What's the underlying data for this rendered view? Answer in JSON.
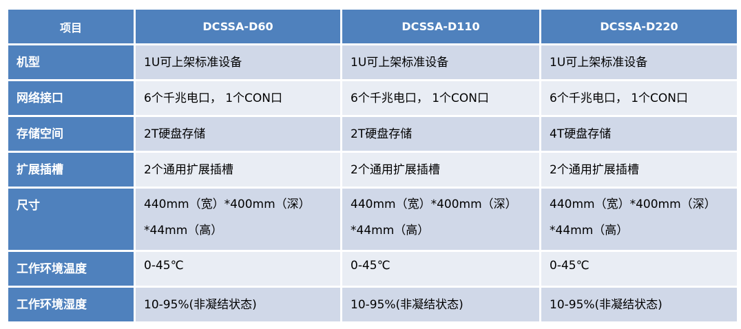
{
  "table": {
    "headers": [
      "项目",
      "DCSSA-D60",
      "DCSSA-D110",
      "DCSSA-D220"
    ],
    "rows": [
      {
        "label": "机型",
        "values": [
          "1U可上架标准设备",
          "1U可上架标准设备",
          "1U可上架标准设备"
        ]
      },
      {
        "label": "网络接口",
        "values": [
          "6个千兆电口， 1个CON口",
          "6个千兆电口， 1个CON口",
          "6个千兆电口， 1个CON口"
        ]
      },
      {
        "label": "存储空间",
        "values": [
          "2T硬盘存储",
          "2T硬盘存储",
          "4T硬盘存储"
        ]
      },
      {
        "label": "扩展插槽",
        "values": [
          "2个通用扩展插槽",
          "2个通用扩展插槽",
          "2个通用扩展插槽"
        ]
      },
      {
        "label": "尺寸",
        "values": [
          {
            "line1": "440mm（宽）*400mm（深）",
            "line2": "*44mm（高）"
          },
          {
            "line1": "440mm（宽）*400mm（深）",
            "line2": "*44mm（高）"
          },
          {
            "line1": "440mm（宽）*400mm（深）",
            "line2": "*44mm（高）"
          }
        ]
      },
      {
        "label": "工作环境温度",
        "values": [
          "0-45℃",
          "0-45℃",
          "0-45℃"
        ]
      },
      {
        "label": "工作环境湿度",
        "values": [
          "10-95%(非凝结状态)",
          "10-95%(非凝结状态)",
          "10-95%(非凝结状态)"
        ]
      }
    ]
  },
  "colors": {
    "header": "#4f81bd",
    "row_dark": "#d0d8e8",
    "row_light": "#e9edf4"
  }
}
